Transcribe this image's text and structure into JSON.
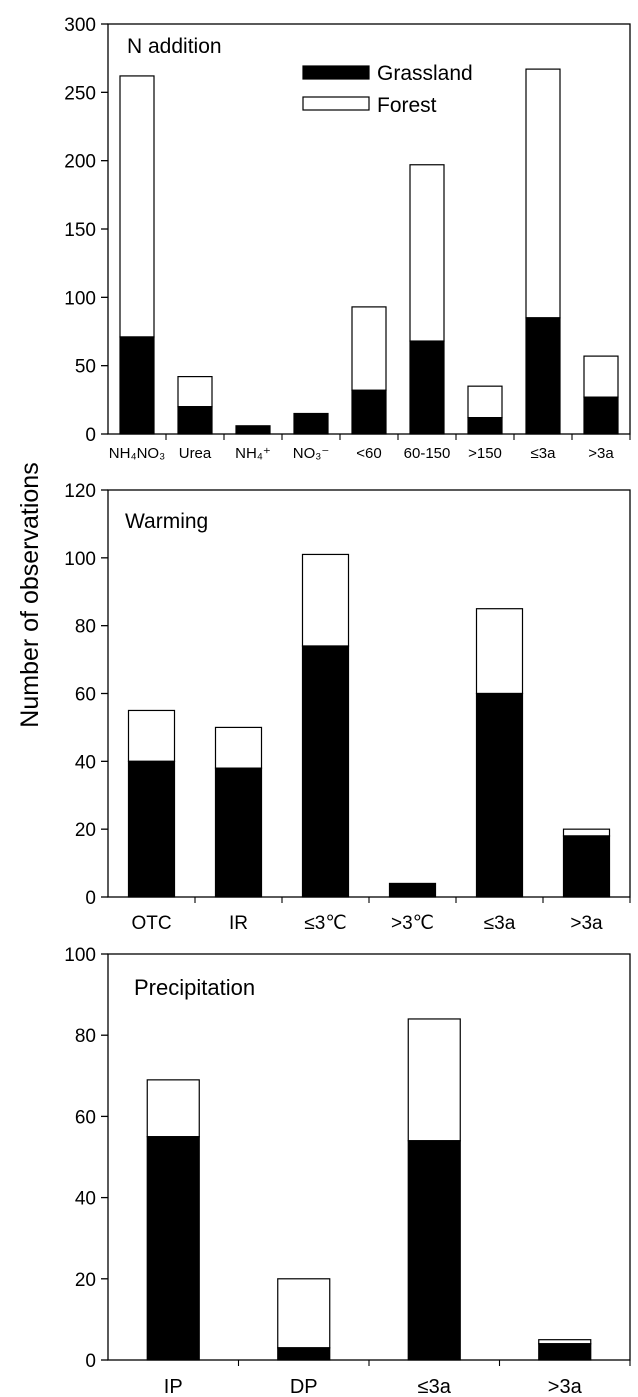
{
  "figure": {
    "ylabel": "Number of observations"
  },
  "legend": {
    "grassland_label": "Grassland",
    "forest_label": "Forest",
    "grassland_color": "#000000",
    "forest_color": "#ffffff"
  },
  "chart_data": [
    {
      "type": "bar",
      "stacked": true,
      "title": "N addition",
      "categories": [
        "NH₄NO₃",
        "Urea",
        "NH₄⁺",
        "NO₃⁻",
        "<60",
        "60-150",
        ">150",
        "≤3a",
        ">3a"
      ],
      "series": [
        {
          "name": "Grassland",
          "values": [
            71,
            20,
            6,
            15,
            32,
            68,
            12,
            85,
            27
          ]
        },
        {
          "name": "Forest",
          "values": [
            191,
            22,
            0,
            0,
            61,
            129,
            23,
            182,
            30
          ]
        }
      ],
      "totals": [
        262,
        42,
        6,
        15,
        93,
        197,
        35,
        267,
        57
      ],
      "ylim": [
        0,
        300
      ],
      "yticks": [
        0,
        50,
        100,
        150,
        200,
        250,
        300
      ],
      "legend_position": "top-center",
      "grid": false
    },
    {
      "type": "bar",
      "stacked": true,
      "title": "Warming",
      "categories": [
        "OTC",
        "IR",
        "≤3℃",
        ">3℃",
        "≤3a",
        ">3a"
      ],
      "series": [
        {
          "name": "Grassland",
          "values": [
            40,
            38,
            74,
            4,
            60,
            18
          ]
        },
        {
          "name": "Forest",
          "values": [
            15,
            12,
            27,
            0,
            25,
            2
          ]
        }
      ],
      "totals": [
        55,
        50,
        101,
        4,
        85,
        20
      ],
      "ylim": [
        0,
        120
      ],
      "yticks": [
        0,
        20,
        40,
        60,
        80,
        100,
        120
      ],
      "grid": false
    },
    {
      "type": "bar",
      "stacked": true,
      "title": "Precipitation",
      "categories": [
        "IP",
        "DP",
        "≤3a",
        ">3a"
      ],
      "series": [
        {
          "name": "Grassland",
          "values": [
            55,
            3,
            54,
            4
          ]
        },
        {
          "name": "Forest",
          "values": [
            14,
            17,
            30,
            1
          ]
        }
      ],
      "totals": [
        69,
        20,
        84,
        5
      ],
      "ylim": [
        0,
        100
      ],
      "yticks": [
        0,
        20,
        40,
        60,
        80,
        100
      ],
      "grid": false
    }
  ]
}
